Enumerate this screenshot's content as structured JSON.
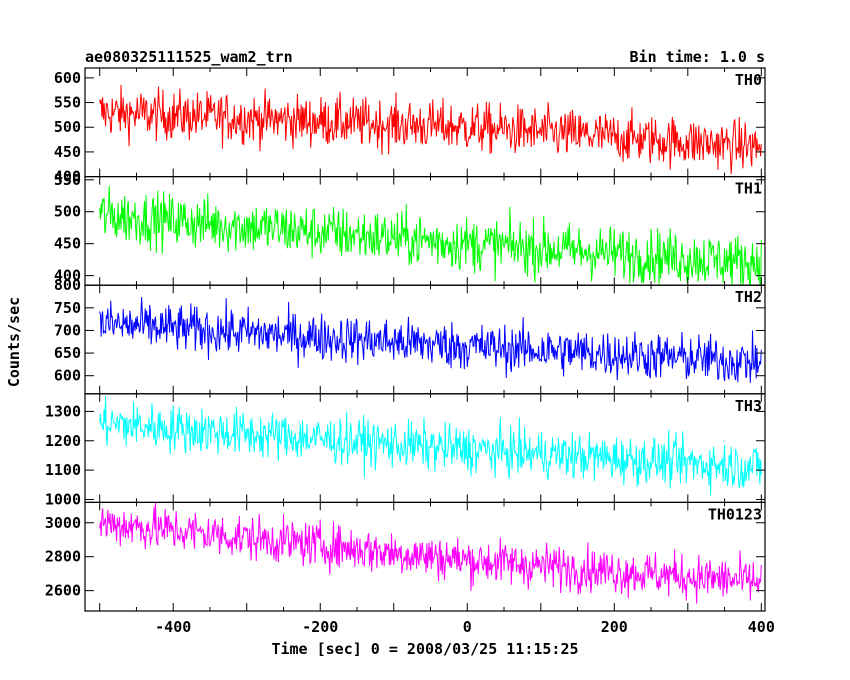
{
  "chart_data": {
    "type": "line",
    "title": "ae080325111525_wam2_trn",
    "subtitle": "Bin time: 1.0 s",
    "xlabel": "Time [sec] 0 = 2008/03/25 11:15:25",
    "ylabel": "Counts/sec",
    "xlim": [
      -520,
      405
    ],
    "x_ticks": [
      -400,
      -200,
      0,
      200,
      400
    ],
    "bin_time": 1.0,
    "grid": false,
    "panels": [
      {
        "name": "TH0",
        "color": "#ff0000",
        "ylim": [
          400,
          620
        ],
        "y_ticks": [
          400,
          450,
          500,
          550,
          600
        ],
        "trend": [
          [
            -500,
            530
          ],
          [
            0,
            500
          ],
          [
            400,
            460
          ]
        ],
        "noise": 25
      },
      {
        "name": "TH1",
        "color": "#00ff00",
        "ylim": [
          385,
          555
        ],
        "y_ticks": [
          400,
          450,
          500,
          550
        ],
        "trend": [
          [
            -500,
            495
          ],
          [
            0,
            450
          ],
          [
            400,
            420
          ]
        ],
        "noise": 21
      },
      {
        "name": "TH2",
        "color": "#0000ff",
        "ylim": [
          560,
          800
        ],
        "y_ticks": [
          600,
          650,
          700,
          750,
          800
        ],
        "trend": [
          [
            -500,
            715
          ],
          [
            0,
            665
          ],
          [
            400,
            630
          ]
        ],
        "noise": 26
      },
      {
        "name": "TH3",
        "color": "#00ffff",
        "ylim": [
          990,
          1360
        ],
        "y_ticks": [
          1000,
          1100,
          1200,
          1300
        ],
        "trend": [
          [
            -500,
            1260
          ],
          [
            0,
            1170
          ],
          [
            400,
            1110
          ]
        ],
        "noise": 40
      },
      {
        "name": "TH0123",
        "color": "#ff00ff",
        "ylim": [
          2480,
          3120
        ],
        "y_ticks": [
          2600,
          2800,
          3000
        ],
        "trend": [
          [
            -500,
            3000
          ],
          [
            0,
            2780
          ],
          [
            400,
            2650
          ]
        ],
        "noise": 65
      }
    ]
  }
}
